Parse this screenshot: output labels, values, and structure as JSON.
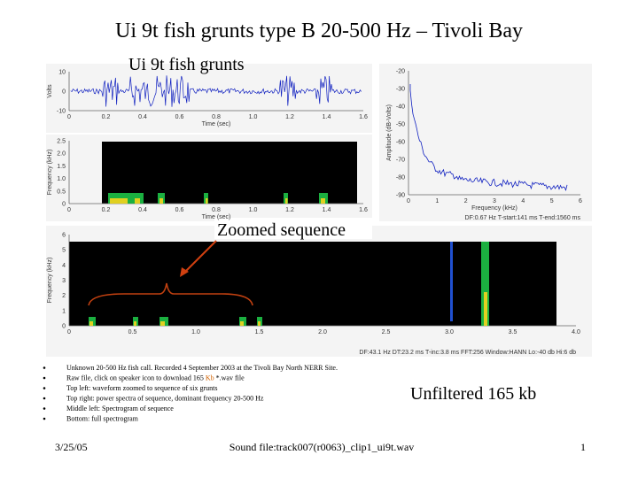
{
  "title": "Ui 9t fish grunts type B 20-500 Hz – Tivoli Bay",
  "subtitle": "Ui 9t fish grunts",
  "zoom_label": "Zoomed sequence",
  "unfiltered": "Unfiltered 165 kb",
  "panels": {
    "waveform": {
      "ylabel": "Volts",
      "yticks": [
        "10",
        "0",
        "-10"
      ],
      "xlabel": "Time (sec)",
      "xticks": [
        "0",
        "0.2",
        "0.4",
        "0.6",
        "0.8",
        "1.0",
        "1.2",
        "1.4",
        "1.6"
      ]
    },
    "spectrum": {
      "ylabel": "Amplitude (dB-Volts)",
      "yticks": [
        "-20",
        "-30",
        "-40",
        "-50",
        "-60",
        "-70",
        "-80",
        "-90"
      ],
      "xlabel": "Frequency (kHz)",
      "xticks": [
        "0",
        "1",
        "2",
        "3",
        "4",
        "5",
        "6"
      ],
      "footer": "DF:0.67 Hz   T-start:141 ms   T-end:1560 ms"
    },
    "spectrogram_top": {
      "ylabel": "Frequency (kHz)",
      "yticks": [
        "2.5",
        "2.0",
        "1.5",
        "1.0",
        "0.5",
        "0"
      ],
      "xlabel": "Time (sec)",
      "xticks": [
        "0",
        "0.2",
        "0.4",
        "0.6",
        "0.8",
        "1.0",
        "1.2",
        "1.4",
        "1.6"
      ]
    },
    "spectrogram_full": {
      "ylabel": "Frequency (kHz)",
      "yticks": [
        "6",
        "5",
        "4",
        "3",
        "2",
        "1",
        "0"
      ],
      "xticks": [
        "0",
        "0.5",
        "1.0",
        "1.5",
        "2.0",
        "2.5",
        "3.0",
        "3.5",
        "4.0"
      ],
      "footer": "DF:43.1 Hz   DT:23.2 ms   T-inc:3.8 ms   FFT:256   Window:HANN   Lo:-40 db   Hi:6 db"
    }
  },
  "bullets": [
    [
      "Unknown 20-500 Hz fish call. Recorded 4 September 2003 at the Tivoli Bay North NERR Site."
    ],
    [
      "Raw file, click on speaker icon to download 165 ",
      "Kb",
      " *.wav file"
    ],
    [
      "Top left: waveform zoomed to sequence of six grunts"
    ],
    [
      "Top right: power spectra of sequence, dominant frequency 20-500 Hz"
    ],
    [
      "Middle left: Spectrogram of sequence"
    ],
    [
      "Bottom: full spectrogram"
    ]
  ],
  "footer": {
    "date": "3/25/05",
    "file": "Sound file:track007(r0063)_clip1_ui9t.wav",
    "page": "1"
  }
}
